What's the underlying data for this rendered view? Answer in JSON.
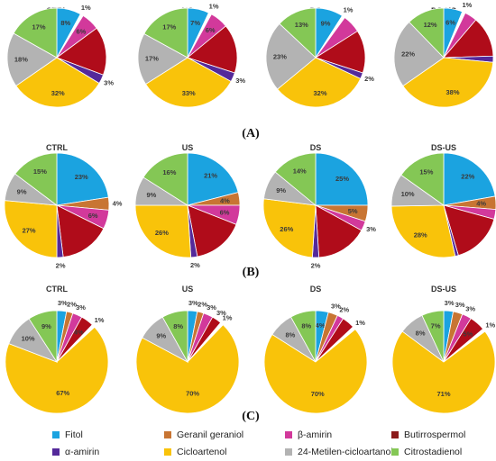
{
  "chart_data": [
    {
      "type": "pie",
      "panel": "(A)",
      "charts": [
        {
          "title": "CTRL",
          "values": [
            8,
            1,
            6,
            16,
            3,
            32,
            18,
            17
          ],
          "labels": [
            "8%",
            "1%",
            "6%",
            "",
            "3%",
            "32%",
            "18%",
            "17%"
          ]
        },
        {
          "title": "US",
          "values": [
            7,
            1,
            6,
            16,
            3,
            33,
            17,
            17
          ],
          "labels": [
            "7%",
            "1%",
            "6%",
            "",
            "3%",
            "33%",
            "17%",
            "17%"
          ]
        },
        {
          "title": "DS",
          "values": [
            9,
            1,
            6,
            14,
            2,
            32,
            23,
            13
          ],
          "labels": [
            "9%",
            "1%",
            "",
            "",
            "2%",
            "32%",
            "23%",
            "13%"
          ]
        },
        {
          "title": "DS-US",
          "values": [
            6,
            1,
            4,
            13,
            2,
            38,
            22,
            12
          ],
          "labels": [
            "6%",
            "1%",
            "",
            "",
            "2%",
            "38%",
            "22%",
            "12%"
          ]
        }
      ]
    },
    {
      "type": "pie",
      "panel": "(B)",
      "charts": [
        {
          "title": "CTRL",
          "values": [
            23,
            0,
            4,
            6,
            16,
            2,
            27,
            9,
            15
          ],
          "labels": [
            "23%",
            "",
            "4%",
            "6%",
            "",
            "2%",
            "27%",
            "9%",
            "15%"
          ]
        },
        {
          "title": "US",
          "values": [
            21,
            0,
            4,
            6,
            16,
            2,
            26,
            9,
            16
          ],
          "labels": [
            "21%",
            "",
            "4%",
            "6%",
            "",
            "2%",
            "26%",
            "9%",
            "16%"
          ]
        },
        {
          "title": "DS",
          "values": [
            25,
            0,
            5,
            3,
            16,
            2,
            26,
            9,
            14
          ],
          "labels": [
            "25%",
            "",
            "5%",
            "3%",
            "",
            "2%",
            "26%",
            "9%",
            "14%"
          ]
        },
        {
          "title": "DS-US",
          "values": [
            22,
            0,
            4,
            3,
            16,
            1,
            28,
            10,
            15
          ],
          "labels": [
            "22%",
            "",
            "4%",
            "",
            "",
            "",
            "28%",
            "10%",
            "15%"
          ]
        }
      ]
    },
    {
      "type": "pie",
      "panel": "(C)",
      "charts": [
        {
          "title": "CTRL",
          "values": [
            3,
            2,
            3,
            4,
            1,
            67,
            10,
            9
          ],
          "labels": [
            "3%",
            "2%",
            "3%",
            "4%",
            "1%",
            "67%",
            "10%",
            "9%"
          ]
        },
        {
          "title": "US",
          "values": [
            3,
            2,
            3,
            3,
            1,
            70,
            9,
            8
          ],
          "labels": [
            "3%",
            "2%",
            "3%",
            "3%",
            "1%",
            "70%",
            "9%",
            "8%"
          ]
        },
        {
          "title": "DS",
          "values": [
            4,
            3,
            2,
            4,
            1,
            70,
            8,
            8
          ],
          "labels": [
            "4%",
            "3%",
            "2%",
            "",
            "1%",
            "70%",
            "8%",
            "8%"
          ]
        },
        {
          "title": "DS-US",
          "values": [
            3,
            3,
            3,
            5,
            1,
            71,
            8,
            7
          ],
          "labels": [
            "3%",
            "3%",
            "3%",
            "5%",
            "1%",
            "71%",
            "8%",
            "7%"
          ]
        }
      ]
    }
  ],
  "slice_colors": [
    "#1ba3e0",
    "#ffffff",
    "#c87533",
    "#d2399b",
    "#b00c1a",
    "#54299a",
    "#f9c30a",
    "#b3b3b3",
    "#84c755"
  ],
  "slice_color_map": {
    "(A)": [
      0,
      1,
      3,
      4,
      5,
      6,
      7,
      8
    ],
    "(B)": [
      0,
      1,
      2,
      3,
      4,
      5,
      6,
      7,
      8
    ],
    "(C)": [
      0,
      2,
      3,
      4,
      1,
      6,
      7,
      8
    ]
  },
  "legend": [
    {
      "label": "Fitol",
      "color": "#1ba3e0"
    },
    {
      "label": "Geranil geraniol",
      "color": "#c87533"
    },
    {
      "label": "β-amirin",
      "color": "#d2399b"
    },
    {
      "label": "Butirrospermol",
      "color": "#8b1a1a"
    },
    {
      "label": "α-amirin",
      "color": "#54299a"
    },
    {
      "label": "Cicloartenol",
      "color": "#f9c30a"
    },
    {
      "label": "24-Metilen-cicloartanol",
      "color": "#b3b3b3"
    },
    {
      "label": "Citrostadienol",
      "color": "#84c755"
    }
  ]
}
